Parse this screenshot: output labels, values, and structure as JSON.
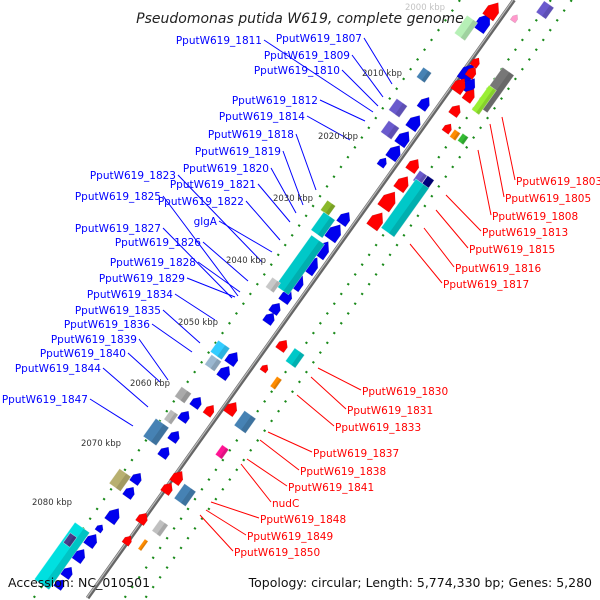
{
  "title": "Pseudomonas putida W619, complete genome",
  "footer": {
    "accession": "Accession: NC_010501",
    "summary": "Topology: circular; Length: 5,774,330 bp; Genes: 5,280"
  },
  "colors": {
    "backbone": "#888888",
    "forward_label": "#0000ff",
    "reverse_label": "#ff0000",
    "tick": "#228b22"
  },
  "kbp_labels": [
    "2000 kbp",
    "2010 kbp",
    "2020 kbp",
    "2030 kbp",
    "2040 kbp",
    "2050 kbp",
    "2060 kbp",
    "2070 kbp",
    "2080 kbp"
  ],
  "forward_genes": [
    "PputW619_1811",
    "PputW619_1807",
    "PputW619_1809",
    "PputW619_1810",
    "PputW619_1812",
    "PputW619_1814",
    "PputW619_1818",
    "PputW619_1819",
    "PputW619_1820",
    "PputW619_1821",
    "PputW619_1823",
    "PputW619_1825",
    "PputW619_1822",
    "glgA",
    "PputW619_1827",
    "PputW619_1826",
    "PputW619_1828",
    "PputW619_1829",
    "PputW619_1834",
    "PputW619_1835",
    "PputW619_1836",
    "PputW619_1839",
    "PputW619_1840",
    "PputW619_1844",
    "PputW619_1847"
  ],
  "reverse_genes": [
    "PputW619_1803",
    "PputW619_1805",
    "PputW619_1808",
    "PputW619_1813",
    "PputW619_1815",
    "PputW619_1816",
    "PputW619_1817",
    "PputW619_1830",
    "PputW619_1831",
    "PputW619_1833",
    "PputW619_1837",
    "PputW619_1838",
    "PputW619_1841",
    "nudC",
    "PputW619_1848",
    "PputW619_1849",
    "PputW619_1850"
  ]
}
